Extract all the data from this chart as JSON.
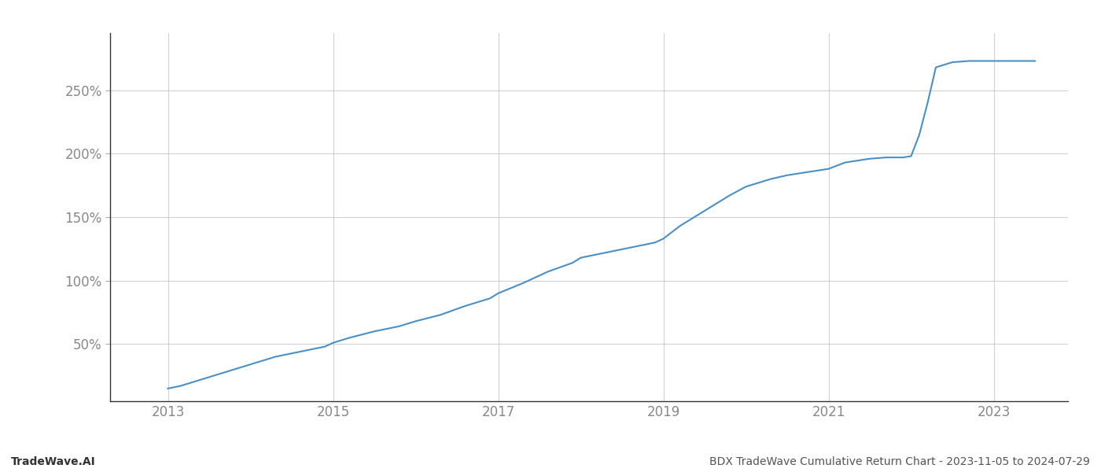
{
  "title": "",
  "footer_left": "TradeWave.AI",
  "footer_right": "BDX TradeWave Cumulative Return Chart - 2023-11-05 to 2024-07-29",
  "line_color": "#4a90c4",
  "line_width": 1.5,
  "background_color": "#ffffff",
  "grid_color": "#cccccc",
  "x_tick_labels": [
    "2013",
    "2015",
    "2017",
    "2019",
    "2021",
    "2023"
  ],
  "x_tick_positions": [
    2013,
    2015,
    2017,
    2019,
    2021,
    2023
  ],
  "y_tick_labels": [
    "50%",
    "100%",
    "150%",
    "200%",
    "250%"
  ],
  "y_tick_positions": [
    50,
    100,
    150,
    200,
    250
  ],
  "xlim": [
    2012.3,
    2023.9
  ],
  "ylim": [
    5,
    295
  ],
  "data_x": [
    2013.0,
    2013.15,
    2013.3,
    2013.5,
    2013.7,
    2013.9,
    2014.1,
    2014.3,
    2014.6,
    2014.9,
    2015.0,
    2015.2,
    2015.5,
    2015.8,
    2016.0,
    2016.3,
    2016.6,
    2016.9,
    2017.0,
    2017.3,
    2017.6,
    2017.9,
    2018.0,
    2018.3,
    2018.6,
    2018.9,
    2019.0,
    2019.2,
    2019.5,
    2019.8,
    2020.0,
    2020.3,
    2020.5,
    2020.8,
    2021.0,
    2021.2,
    2021.5,
    2021.7,
    2021.9,
    2022.0,
    2022.1,
    2022.2,
    2022.3,
    2022.5,
    2022.7,
    2022.9,
    2023.0,
    2023.5
  ],
  "data_y": [
    15,
    17,
    20,
    24,
    28,
    32,
    36,
    40,
    44,
    48,
    51,
    55,
    60,
    64,
    68,
    73,
    80,
    86,
    90,
    98,
    107,
    114,
    118,
    122,
    126,
    130,
    133,
    143,
    155,
    167,
    174,
    180,
    183,
    186,
    188,
    193,
    196,
    197,
    197,
    198,
    215,
    240,
    268,
    272,
    273,
    273,
    273,
    273
  ]
}
